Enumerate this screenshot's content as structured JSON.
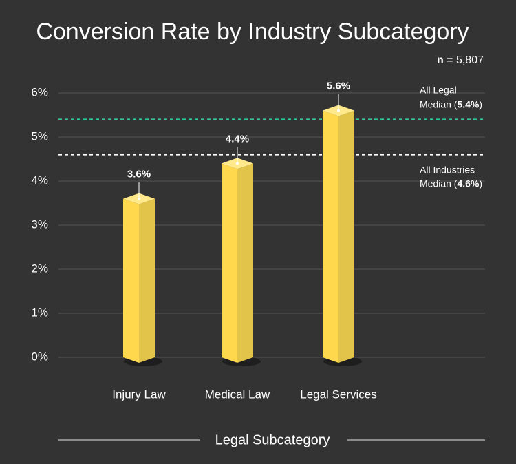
{
  "chart_data": {
    "type": "bar3d",
    "title": "Conversion Rate by Industry Subcategory",
    "sample_size_label": "n",
    "sample_size": "= 5,807",
    "x_label": "Legal Subcategory",
    "categories": [
      "Injury Law",
      "Medical Law",
      "Legal Services"
    ],
    "values": [
      3.6,
      4.4,
      5.6
    ],
    "value_labels": [
      "3.6%",
      "4.4%",
      "5.6%"
    ],
    "color": "#ffd84d",
    "ylim": [
      0,
      6
    ],
    "yticks": [
      {
        "value": 0,
        "label": "0%"
      },
      {
        "value": 1,
        "label": "1%"
      },
      {
        "value": 2,
        "label": "2%"
      },
      {
        "value": 3,
        "label": "3%"
      },
      {
        "value": 4,
        "label": "4%"
      },
      {
        "value": 5,
        "label": "5%"
      },
      {
        "value": 6,
        "label": "6%"
      }
    ],
    "grid": true,
    "reference_lines": [
      {
        "value": 5.4,
        "color": "#2ec99a",
        "label_position": "above",
        "label": [
          "All Legal",
          "Median ("
        ],
        "value_label": "5.4%",
        "label_end": ")"
      },
      {
        "value": 4.6,
        "color": "#ffffff",
        "label_position": "below",
        "label": [
          "All Industries",
          "Median ("
        ],
        "value_label": "4.6%",
        "label_end": ")"
      }
    ]
  }
}
